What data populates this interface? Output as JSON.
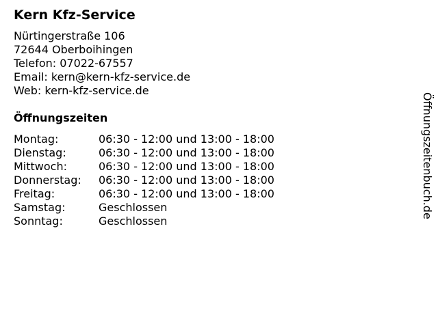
{
  "business": {
    "name": "Kern Kfz-Service",
    "street": "Nürtingerstraße 106",
    "city": "72644 Oberboihingen",
    "phone": "Telefon: 07022-67557",
    "email": "Email: kern@kern-kfz-service.de",
    "web": "Web: kern-kfz-service.de"
  },
  "hours_title": "Öffnungszeiten",
  "hours": [
    {
      "day": "Montag:",
      "time": "06:30 - 12:00 und 13:00 - 18:00"
    },
    {
      "day": "Dienstag:",
      "time": "06:30 - 12:00 und 13:00 - 18:00"
    },
    {
      "day": "Mittwoch:",
      "time": "06:30 - 12:00 und 13:00 - 18:00"
    },
    {
      "day": "Donnerstag:",
      "time": "06:30 - 12:00 und 13:00 - 18:00"
    },
    {
      "day": "Freitag:",
      "time": "06:30 - 12:00 und 13:00 - 18:00"
    },
    {
      "day": "Samstag:",
      "time": "Geschlossen"
    },
    {
      "day": "Sonntag:",
      "time": "Geschlossen"
    }
  ],
  "watermark": "Öffnungszeitenbuch.de"
}
